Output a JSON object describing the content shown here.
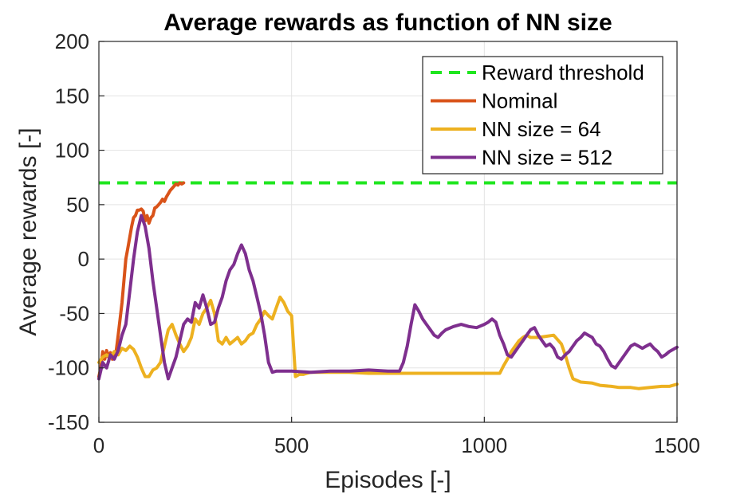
{
  "chart_data": {
    "type": "line",
    "title": "Average rewards as function of NN size",
    "xlabel": "Episodes [-]",
    "ylabel": "Average rewards [-]",
    "xlim": [
      0,
      1500
    ],
    "ylim": [
      -150,
      200
    ],
    "xticks": [
      0,
      500,
      1000,
      1500
    ],
    "yticks": [
      -150,
      -100,
      -50,
      0,
      50,
      100,
      150,
      200
    ],
    "grid": true,
    "legend_position": "top-right",
    "series": [
      {
        "name": "Reward threshold",
        "color": "#1fe61f",
        "style": "dashed",
        "x": [
          0,
          1500
        ],
        "y": [
          70,
          70
        ]
      },
      {
        "name": "Nominal",
        "color": "#d95319",
        "style": "solid",
        "x": [
          0,
          5,
          10,
          15,
          20,
          25,
          30,
          35,
          40,
          45,
          50,
          55,
          60,
          65,
          70,
          75,
          80,
          85,
          90,
          95,
          100,
          105,
          110,
          115,
          120,
          125,
          130,
          135,
          140,
          145,
          150,
          155,
          160,
          165,
          170,
          175,
          180,
          185,
          190,
          195,
          200,
          205,
          210,
          215,
          220
        ],
        "y": [
          -108,
          -100,
          -85,
          -92,
          -84,
          -90,
          -86,
          -92,
          -90,
          -84,
          -70,
          -55,
          -40,
          -20,
          0,
          10,
          20,
          30,
          38,
          40,
          45,
          45,
          46,
          44,
          35,
          40,
          33,
          38,
          40,
          47,
          48,
          50,
          52,
          55,
          53,
          57,
          60,
          63,
          65,
          67,
          69,
          68,
          70,
          69,
          70
        ]
      },
      {
        "name": "NN size = 64",
        "color": "#edb120",
        "style": "solid",
        "x": [
          0,
          10,
          20,
          30,
          40,
          50,
          60,
          70,
          80,
          90,
          100,
          110,
          120,
          130,
          140,
          150,
          160,
          170,
          180,
          190,
          200,
          210,
          220,
          230,
          240,
          250,
          260,
          270,
          280,
          290,
          300,
          310,
          320,
          330,
          340,
          350,
          360,
          370,
          380,
          390,
          400,
          410,
          420,
          430,
          440,
          450,
          460,
          470,
          480,
          490,
          500,
          510,
          520,
          530,
          540,
          550,
          560,
          600,
          650,
          700,
          750,
          800,
          850,
          900,
          950,
          1000,
          1040,
          1050,
          1060,
          1070,
          1080,
          1090,
          1100,
          1110,
          1120,
          1140,
          1160,
          1180,
          1200,
          1210,
          1220,
          1230,
          1250,
          1280,
          1300,
          1330,
          1350,
          1380,
          1400,
          1430,
          1460,
          1480,
          1500
        ],
        "y": [
          -95,
          -90,
          -88,
          -90,
          -85,
          -88,
          -82,
          -84,
          -80,
          -83,
          -90,
          -100,
          -108,
          -108,
          -102,
          -100,
          -95,
          -80,
          -65,
          -60,
          -70,
          -78,
          -85,
          -80,
          -72,
          -55,
          -60,
          -50,
          -45,
          -38,
          -50,
          -75,
          -78,
          -72,
          -78,
          -75,
          -72,
          -78,
          -75,
          -70,
          -68,
          -60,
          -55,
          -48,
          -52,
          -55,
          -45,
          -35,
          -40,
          -48,
          -52,
          -108,
          -106,
          -106,
          -105,
          -104,
          -104,
          -104,
          -104,
          -105,
          -105,
          -105,
          -105,
          -105,
          -105,
          -105,
          -105,
          -98,
          -92,
          -85,
          -80,
          -75,
          -72,
          -70,
          -72,
          -72,
          -71,
          -70,
          -78,
          -88,
          -100,
          -110,
          -113,
          -114,
          -116,
          -117,
          -118,
          -118,
          -119,
          -118,
          -117,
          -117,
          -115
        ]
      },
      {
        "name": "NN size = 512",
        "color": "#7e2f8e",
        "style": "solid",
        "x": [
          0,
          10,
          20,
          30,
          40,
          50,
          60,
          70,
          80,
          90,
          100,
          110,
          120,
          130,
          140,
          150,
          160,
          170,
          180,
          190,
          200,
          210,
          220,
          230,
          240,
          250,
          260,
          270,
          280,
          290,
          300,
          310,
          320,
          330,
          340,
          350,
          360,
          370,
          380,
          390,
          400,
          410,
          420,
          430,
          440,
          450,
          460,
          470,
          480,
          490,
          500,
          550,
          600,
          650,
          700,
          750,
          780,
          790,
          800,
          810,
          820,
          830,
          840,
          850,
          860,
          870,
          880,
          890,
          900,
          920,
          940,
          960,
          980,
          1000,
          1010,
          1020,
          1030,
          1040,
          1050,
          1060,
          1070,
          1080,
          1090,
          1100,
          1110,
          1120,
          1130,
          1140,
          1150,
          1160,
          1170,
          1180,
          1190,
          1200,
          1210,
          1220,
          1230,
          1240,
          1250,
          1260,
          1270,
          1280,
          1290,
          1300,
          1310,
          1320,
          1330,
          1340,
          1350,
          1360,
          1370,
          1380,
          1390,
          1400,
          1410,
          1420,
          1430,
          1440,
          1450,
          1460,
          1470,
          1480,
          1490,
          1500
        ],
        "y": [
          -110,
          -95,
          -100,
          -88,
          -92,
          -84,
          -70,
          -60,
          -30,
          0,
          25,
          40,
          30,
          10,
          -20,
          -45,
          -70,
          -95,
          -110,
          -100,
          -90,
          -75,
          -60,
          -55,
          -58,
          -40,
          -45,
          -33,
          -45,
          -60,
          -58,
          -45,
          -35,
          -20,
          -10,
          -5,
          5,
          13,
          5,
          -10,
          -20,
          -35,
          -50,
          -70,
          -95,
          -104,
          -103,
          -103,
          -103,
          -103,
          -103,
          -104,
          -103,
          -103,
          -102,
          -103,
          -103,
          -95,
          -80,
          -60,
          -42,
          -48,
          -55,
          -60,
          -65,
          -70,
          -72,
          -68,
          -65,
          -62,
          -60,
          -62,
          -63,
          -60,
          -58,
          -55,
          -58,
          -70,
          -78,
          -88,
          -90,
          -85,
          -80,
          -75,
          -70,
          -65,
          -63,
          -70,
          -75,
          -80,
          -78,
          -82,
          -90,
          -92,
          -88,
          -85,
          -80,
          -75,
          -72,
          -68,
          -70,
          -72,
          -78,
          -80,
          -85,
          -92,
          -98,
          -100,
          -95,
          -90,
          -85,
          -80,
          -78,
          -80,
          -82,
          -80,
          -78,
          -82,
          -85,
          -90,
          -88,
          -85,
          -83,
          -81
        ]
      }
    ]
  }
}
